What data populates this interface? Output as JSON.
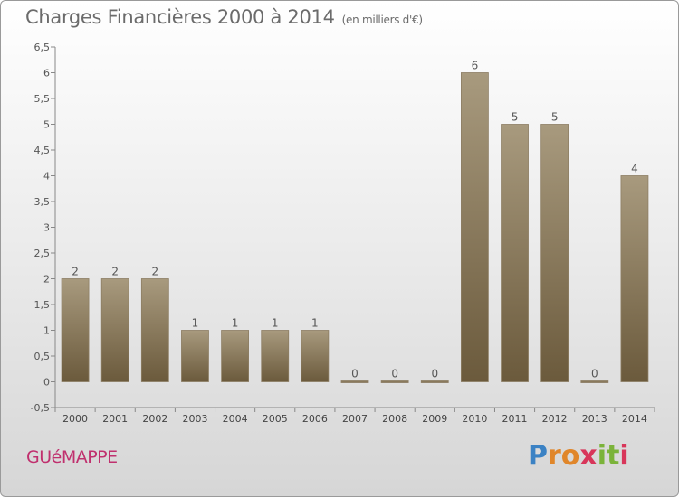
{
  "header": {
    "title": "Charges Financières 2000 à 2014",
    "units": "(en milliers d'€)"
  },
  "footer": {
    "commune": "GUéMAPPE",
    "logo_letters": [
      "P",
      "r",
      "o",
      "x",
      "i",
      "t",
      "i"
    ]
  },
  "colors": {
    "bar_top": "#a89a7e",
    "bar_bottom": "#6b5a3c",
    "title": "#6b6b6b",
    "commune": "#c0306e"
  },
  "chart_data": {
    "type": "bar",
    "title": "Charges Financières 2000 à 2014",
    "subtitle": "(en milliers d'€)",
    "categories": [
      "2000",
      "2001",
      "2002",
      "2003",
      "2004",
      "2005",
      "2006",
      "2007",
      "2008",
      "2009",
      "2010",
      "2011",
      "2012",
      "2013",
      "2014"
    ],
    "values": [
      2,
      2,
      2,
      1,
      1,
      1,
      1,
      0,
      0,
      0,
      6,
      5,
      5,
      0,
      4
    ],
    "data_labels": [
      "2",
      "2",
      "2",
      "1",
      "1",
      "1",
      "1",
      "0",
      "0",
      "0",
      "6",
      "5",
      "5",
      "0",
      "4"
    ],
    "ylim": [
      -0.5,
      6.5
    ],
    "yticks": [
      -0.5,
      0,
      0.5,
      1,
      1.5,
      2,
      2.5,
      3,
      3.5,
      4,
      4.5,
      5,
      5.5,
      6,
      6.5
    ],
    "ytick_labels": [
      "-0,5",
      "0",
      "0,5",
      "1",
      "1,5",
      "2",
      "2,5",
      "3",
      "3,5",
      "4",
      "4,5",
      "5",
      "5,5",
      "6",
      "6,5"
    ],
    "grid": false,
    "legend": "none"
  }
}
